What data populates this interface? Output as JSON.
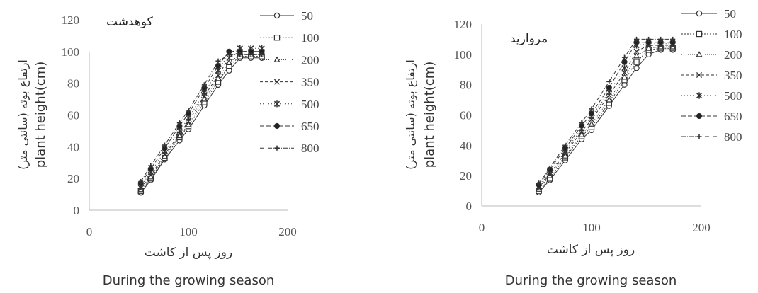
{
  "chart_data": [
    {
      "type": "line",
      "title": "کوهدشت",
      "xlabel": "روز پس از کاشت",
      "xlabel_en": "During the growing season",
      "ylabel": "ارتفاع بوته (سانتی متر)",
      "ylabel_en": "plant height(cm)",
      "xlim": [
        0,
        200
      ],
      "ylim": [
        0,
        120
      ],
      "xticks": [
        "0",
        "100",
        "200"
      ],
      "yticks": [
        "0",
        "20",
        "40",
        "60",
        "80",
        "100",
        "120"
      ],
      "grid": false,
      "legend_position": "right",
      "x": [
        52,
        62,
        76,
        91,
        100,
        116,
        130,
        141,
        152,
        163,
        174
      ],
      "series": [
        {
          "name": "50",
          "marker": "circle",
          "values": [
            11,
            19,
            32,
            44,
            51,
            66,
            79,
            88,
            96,
            96,
            96
          ]
        },
        {
          "name": "100",
          "marker": "square",
          "values": [
            12,
            20,
            33,
            46,
            53,
            68,
            81,
            91,
            97,
            97,
            97
          ]
        },
        {
          "name": "200",
          "marker": "triangle",
          "values": [
            13,
            21,
            34,
            47,
            54,
            70,
            83,
            93,
            98,
            98,
            98
          ]
        },
        {
          "name": "350",
          "marker": "x",
          "values": [
            14,
            22,
            35,
            48,
            56,
            72,
            85,
            96,
            100,
            100,
            100
          ]
        },
        {
          "name": "500",
          "marker": "star",
          "values": [
            15,
            24,
            37,
            50,
            58,
            74,
            88,
            99,
            102,
            102,
            102
          ]
        },
        {
          "name": "650",
          "marker": "filled-circle",
          "values": [
            17,
            26,
            39,
            53,
            61,
            77,
            91,
            100,
            100,
            100,
            100
          ]
        },
        {
          "name": "800",
          "marker": "plus",
          "values": [
            18,
            28,
            41,
            55,
            63,
            79,
            94,
            98,
            98,
            98,
            98
          ]
        }
      ]
    },
    {
      "type": "line",
      "title": "مروارید",
      "xlabel": "روز پس از کاشت",
      "xlabel_en": "During the growing season",
      "ylabel": "ارتفاع بوته (سانتی متر)",
      "ylabel_en": "plant height(cm)",
      "xlim": [
        0,
        200
      ],
      "ylim": [
        0,
        120
      ],
      "xticks": [
        "0",
        "100",
        "200"
      ],
      "yticks": [
        "0",
        "20",
        "40",
        "60",
        "80",
        "100",
        "120"
      ],
      "grid": false,
      "legend_position": "top-right",
      "x": [
        52,
        62,
        76,
        91,
        100,
        116,
        130,
        141,
        152,
        163,
        174
      ],
      "series": [
        {
          "name": "50",
          "marker": "circle",
          "values": [
            9,
            17,
            30,
            44,
            50,
            66,
            80,
            91,
            100,
            103,
            103
          ]
        },
        {
          "name": "100",
          "marker": "square",
          "values": [
            10,
            18,
            32,
            46,
            52,
            68,
            83,
            95,
            103,
            104,
            104
          ]
        },
        {
          "name": "200",
          "marker": "triangle",
          "values": [
            11,
            20,
            33,
            47,
            54,
            70,
            85,
            99,
            104,
            105,
            105
          ]
        },
        {
          "name": "350",
          "marker": "x",
          "values": [
            12,
            21,
            35,
            49,
            57,
            73,
            88,
            102,
            106,
            106,
            106
          ]
        },
        {
          "name": "500",
          "marker": "star",
          "values": [
            13,
            22,
            36,
            51,
            59,
            75,
            91,
            106,
            107,
            107,
            107
          ]
        },
        {
          "name": "650",
          "marker": "filled-circle",
          "values": [
            14,
            24,
            38,
            53,
            61,
            78,
            95,
            108,
            108,
            108,
            108
          ]
        },
        {
          "name": "800",
          "marker": "plus",
          "values": [
            15,
            25,
            40,
            55,
            64,
            82,
            98,
            110,
            110,
            110,
            110
          ]
        }
      ]
    }
  ]
}
